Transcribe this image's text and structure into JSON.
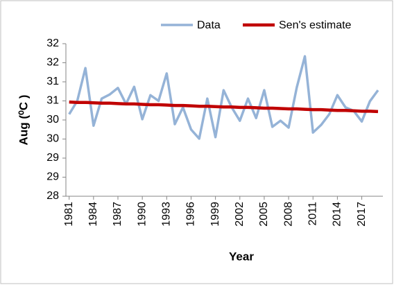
{
  "chart_data": {
    "type": "line",
    "x_label": "Year",
    "y_label": "Aug (⁰C )",
    "x": [
      1981,
      1982,
      1983,
      1984,
      1985,
      1986,
      1987,
      1988,
      1989,
      1990,
      1991,
      1992,
      1993,
      1994,
      1995,
      1996,
      1997,
      1998,
      1999,
      2000,
      2001,
      2002,
      2003,
      2004,
      2005,
      2006,
      2007,
      2008,
      2009,
      2010,
      2011,
      2012,
      2013,
      2014,
      2015,
      2016,
      2017,
      2018,
      2019
    ],
    "series": [
      {
        "name": "Data",
        "color": "#95b3d7",
        "values": [
          30.15,
          30.5,
          31.36,
          29.85,
          30.56,
          30.67,
          30.84,
          30.42,
          30.87,
          30.02,
          30.65,
          30.5,
          31.22,
          29.89,
          30.33,
          29.75,
          29.51,
          30.56,
          29.55,
          30.78,
          30.33,
          29.98,
          30.56,
          30.05,
          30.78,
          29.82,
          29.98,
          29.8,
          30.85,
          31.67,
          29.67,
          29.87,
          30.15,
          30.65,
          30.33,
          30.24,
          29.96,
          30.49,
          30.78
        ]
      },
      {
        "name": "Sen's estimate",
        "color": "#c00000",
        "values": [
          30.47,
          30.46,
          30.46,
          30.45,
          30.44,
          30.44,
          30.43,
          30.42,
          30.42,
          30.41,
          30.4,
          30.4,
          30.39,
          30.38,
          30.38,
          30.37,
          30.36,
          30.36,
          30.35,
          30.34,
          30.34,
          30.33,
          30.33,
          30.32,
          30.31,
          30.31,
          30.3,
          30.29,
          30.29,
          30.28,
          30.27,
          30.27,
          30.26,
          30.25,
          30.25,
          30.24,
          30.23,
          30.23,
          30.22
        ]
      }
    ],
    "xlim": [
      1980.6,
      2019.6
    ],
    "xticks": [
      1981,
      1984,
      1987,
      1990,
      1993,
      1996,
      1999,
      2002,
      2005,
      2008,
      2011,
      2014,
      2017
    ],
    "ylim": [
      28,
      32
    ],
    "yticks": [
      {
        "value": 28,
        "label": "28"
      },
      {
        "value": 28.5,
        "label": "29"
      },
      {
        "value": 29,
        "label": "29"
      },
      {
        "value": 29.5,
        "label": "30"
      },
      {
        "value": 30,
        "label": "30"
      },
      {
        "value": 30.5,
        "label": "31"
      },
      {
        "value": 31,
        "label": "31"
      },
      {
        "value": 31.5,
        "label": "32"
      },
      {
        "value": 32,
        "label": "32"
      }
    ],
    "grid": false,
    "legend": "top"
  }
}
